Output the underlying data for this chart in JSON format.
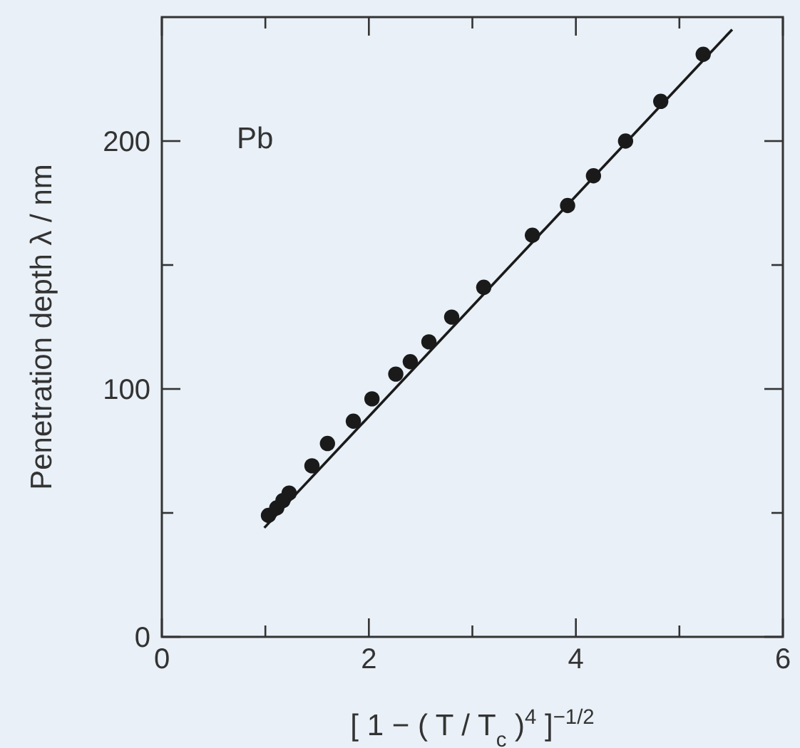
{
  "chart_data": {
    "type": "scatter",
    "xlabel": "[ 1 − ( T / T$_{c}$ )$^{4}$ ]$^{−1/2}$",
    "ylabel": "Penetration depth λ / nm",
    "annotations": [
      "Pb"
    ],
    "xlim": [
      0,
      6
    ],
    "ylim": [
      0,
      250
    ],
    "xticks": [
      0,
      {
        "value": 1,
        "label": null
      },
      2,
      {
        "value": 3,
        "label": null
      },
      4,
      {
        "value": 5,
        "label": null
      },
      6
    ],
    "yticks": [
      0,
      {
        "value": 50,
        "label": null
      },
      100,
      {
        "value": 150,
        "label": null
      },
      200
    ],
    "grid": false,
    "series": [
      {
        "marker": "circle",
        "color": "#1a1a1a",
        "x": [
          1.03,
          1.11,
          1.17,
          1.23,
          1.45,
          1.6,
          1.85,
          2.03,
          2.26,
          2.4,
          2.58,
          2.8,
          3.11,
          3.58,
          3.92,
          4.17,
          4.48,
          4.82,
          5.23
        ],
        "values": [
          49,
          52,
          55,
          58,
          69,
          78,
          87,
          96,
          106,
          111,
          119,
          129,
          141,
          162,
          174,
          186,
          200,
          216,
          235
        ]
      },
      {
        "type": "line",
        "color": "#1a1a1a",
        "line_style": "solid",
        "x": [
          0.99,
          5.51
        ],
        "values": [
          44,
          245
        ]
      }
    ]
  }
}
